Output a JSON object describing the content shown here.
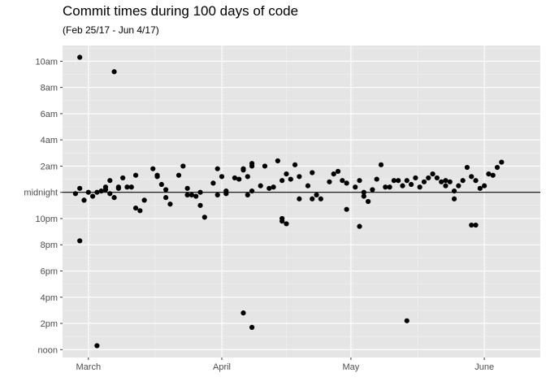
{
  "chart_data": {
    "type": "scatter",
    "title": "Commit times during 100 days of code",
    "subtitle": "(Feb 25/17 - Jun 4/17)",
    "xlabel": "",
    "ylabel": "",
    "x_axis": {
      "type": "date",
      "range": [
        "2017-02-23",
        "2017-06-14"
      ],
      "ticks": [
        {
          "label": "March",
          "value": "2017-03-01"
        },
        {
          "label": "April",
          "value": "2017-04-01"
        },
        {
          "label": "May",
          "value": "2017-05-01"
        },
        {
          "label": "June",
          "value": "2017-06-01"
        }
      ]
    },
    "y_axis": {
      "unit": "hours relative to midnight",
      "range": [
        -12.6,
        11.2
      ],
      "ticks": [
        {
          "label": "noon",
          "value": -12
        },
        {
          "label": "2pm",
          "value": -10
        },
        {
          "label": "4pm",
          "value": -8
        },
        {
          "label": "6pm",
          "value": -6
        },
        {
          "label": "8pm",
          "value": -4
        },
        {
          "label": "10pm",
          "value": -2
        },
        {
          "label": "midnight",
          "value": 0
        },
        {
          "label": "2am",
          "value": 2
        },
        {
          "label": "4am",
          "value": 4
        },
        {
          "label": "6am",
          "value": 6
        },
        {
          "label": "8am",
          "value": 8
        },
        {
          "label": "10am",
          "value": 10
        }
      ]
    },
    "reference_line": {
      "y": 0,
      "label": "midnight"
    },
    "grid": true,
    "series": [
      {
        "points": [
          {
            "x": "2017-02-26",
            "y": -0.1
          },
          {
            "x": "2017-02-27",
            "y": 10.3
          },
          {
            "x": "2017-02-27",
            "y": -3.7
          },
          {
            "x": "2017-02-27",
            "y": 0.3
          },
          {
            "x": "2017-02-28",
            "y": -0.6
          },
          {
            "x": "2017-03-01",
            "y": 0.0
          },
          {
            "x": "2017-03-02",
            "y": -0.3
          },
          {
            "x": "2017-03-03",
            "y": 0.0
          },
          {
            "x": "2017-03-03",
            "y": -11.7
          },
          {
            "x": "2017-03-04",
            "y": 0.1
          },
          {
            "x": "2017-03-05",
            "y": 0.4
          },
          {
            "x": "2017-03-05",
            "y": 0.2
          },
          {
            "x": "2017-03-06",
            "y": 0.9
          },
          {
            "x": "2017-03-06",
            "y": -0.1
          },
          {
            "x": "2017-03-07",
            "y": 9.2
          },
          {
            "x": "2017-03-07",
            "y": -0.4
          },
          {
            "x": "2017-03-08",
            "y": 0.4
          },
          {
            "x": "2017-03-08",
            "y": 0.3
          },
          {
            "x": "2017-03-09",
            "y": 1.1
          },
          {
            "x": "2017-03-10",
            "y": 0.4
          },
          {
            "x": "2017-03-11",
            "y": 0.4
          },
          {
            "x": "2017-03-12",
            "y": 1.3
          },
          {
            "x": "2017-03-12",
            "y": -1.2
          },
          {
            "x": "2017-03-13",
            "y": -1.4
          },
          {
            "x": "2017-03-14",
            "y": -0.6
          },
          {
            "x": "2017-03-16",
            "y": 1.8
          },
          {
            "x": "2017-03-17",
            "y": 1.3
          },
          {
            "x": "2017-03-17",
            "y": 1.2
          },
          {
            "x": "2017-03-18",
            "y": 0.6
          },
          {
            "x": "2017-03-19",
            "y": 0.2
          },
          {
            "x": "2017-03-19",
            "y": -0.4
          },
          {
            "x": "2017-03-20",
            "y": -0.9
          },
          {
            "x": "2017-03-22",
            "y": 1.3
          },
          {
            "x": "2017-03-23",
            "y": 2.0
          },
          {
            "x": "2017-03-24",
            "y": 0.3
          },
          {
            "x": "2017-03-24",
            "y": -0.2
          },
          {
            "x": "2017-03-25",
            "y": -0.2
          },
          {
            "x": "2017-03-26",
            "y": -0.3
          },
          {
            "x": "2017-03-27",
            "y": 0.0
          },
          {
            "x": "2017-03-27",
            "y": -1.0
          },
          {
            "x": "2017-03-28",
            "y": -1.9
          },
          {
            "x": "2017-03-30",
            "y": 0.7
          },
          {
            "x": "2017-03-31",
            "y": 1.8
          },
          {
            "x": "2017-03-31",
            "y": -0.2
          },
          {
            "x": "2017-04-01",
            "y": 1.2
          },
          {
            "x": "2017-04-02",
            "y": 0.1
          },
          {
            "x": "2017-04-02",
            "y": -0.1
          },
          {
            "x": "2017-04-04",
            "y": 1.1
          },
          {
            "x": "2017-04-05",
            "y": 1.0
          },
          {
            "x": "2017-04-06",
            "y": 1.8
          },
          {
            "x": "2017-04-06",
            "y": 1.7
          },
          {
            "x": "2017-04-06",
            "y": -9.2
          },
          {
            "x": "2017-04-07",
            "y": 1.2
          },
          {
            "x": "2017-04-07",
            "y": -0.2
          },
          {
            "x": "2017-04-08",
            "y": 2.2
          },
          {
            "x": "2017-04-08",
            "y": 2.0
          },
          {
            "x": "2017-04-08",
            "y": 0.1
          },
          {
            "x": "2017-04-08",
            "y": -10.3
          },
          {
            "x": "2017-04-10",
            "y": 0.5
          },
          {
            "x": "2017-04-11",
            "y": 2.0
          },
          {
            "x": "2017-04-12",
            "y": 0.3
          },
          {
            "x": "2017-04-13",
            "y": 0.4
          },
          {
            "x": "2017-04-14",
            "y": 2.4
          },
          {
            "x": "2017-04-15",
            "y": 0.9
          },
          {
            "x": "2017-04-15",
            "y": -2.0
          },
          {
            "x": "2017-04-15",
            "y": -2.2
          },
          {
            "x": "2017-04-16",
            "y": 1.4
          },
          {
            "x": "2017-04-16",
            "y": -2.4
          },
          {
            "x": "2017-04-17",
            "y": 1.0
          },
          {
            "x": "2017-04-18",
            "y": 2.1
          },
          {
            "x": "2017-04-19",
            "y": 1.2
          },
          {
            "x": "2017-04-19",
            "y": -0.5
          },
          {
            "x": "2017-04-21",
            "y": 0.5
          },
          {
            "x": "2017-04-22",
            "y": 1.5
          },
          {
            "x": "2017-04-22",
            "y": -0.5
          },
          {
            "x": "2017-04-23",
            "y": -0.2
          },
          {
            "x": "2017-04-24",
            "y": -0.5
          },
          {
            "x": "2017-04-26",
            "y": 0.8
          },
          {
            "x": "2017-04-27",
            "y": 1.4
          },
          {
            "x": "2017-04-28",
            "y": 1.6
          },
          {
            "x": "2017-04-29",
            "y": 0.9
          },
          {
            "x": "2017-04-30",
            "y": 0.7
          },
          {
            "x": "2017-04-30",
            "y": -1.3
          },
          {
            "x": "2017-05-02",
            "y": 0.4
          },
          {
            "x": "2017-05-03",
            "y": 0.9
          },
          {
            "x": "2017-05-03",
            "y": -2.6
          },
          {
            "x": "2017-05-04",
            "y": 0.0
          },
          {
            "x": "2017-05-04",
            "y": -0.3
          },
          {
            "x": "2017-05-05",
            "y": -0.7
          },
          {
            "x": "2017-05-06",
            "y": 0.2
          },
          {
            "x": "2017-05-07",
            "y": 1.0
          },
          {
            "x": "2017-05-08",
            "y": 2.1
          },
          {
            "x": "2017-05-09",
            "y": 0.4
          },
          {
            "x": "2017-05-10",
            "y": 0.4
          },
          {
            "x": "2017-05-11",
            "y": 0.9
          },
          {
            "x": "2017-05-12",
            "y": 0.9
          },
          {
            "x": "2017-05-13",
            "y": 0.5
          },
          {
            "x": "2017-05-14",
            "y": 0.9
          },
          {
            "x": "2017-05-14",
            "y": -9.8
          },
          {
            "x": "2017-05-15",
            "y": 0.6
          },
          {
            "x": "2017-05-16",
            "y": 1.1
          },
          {
            "x": "2017-05-17",
            "y": 0.4
          },
          {
            "x": "2017-05-18",
            "y": 0.8
          },
          {
            "x": "2017-05-19",
            "y": 1.1
          },
          {
            "x": "2017-05-20",
            "y": 1.4
          },
          {
            "x": "2017-05-21",
            "y": 1.1
          },
          {
            "x": "2017-05-22",
            "y": 0.8
          },
          {
            "x": "2017-05-23",
            "y": 0.5
          },
          {
            "x": "2017-05-23",
            "y": 0.9
          },
          {
            "x": "2017-05-24",
            "y": 0.8
          },
          {
            "x": "2017-05-25",
            "y": 0.1
          },
          {
            "x": "2017-05-25",
            "y": -0.5
          },
          {
            "x": "2017-05-26",
            "y": 0.5
          },
          {
            "x": "2017-05-27",
            "y": 0.9
          },
          {
            "x": "2017-05-28",
            "y": 1.9
          },
          {
            "x": "2017-05-29",
            "y": 1.2
          },
          {
            "x": "2017-05-29",
            "y": -2.5
          },
          {
            "x": "2017-05-30",
            "y": 0.9
          },
          {
            "x": "2017-05-30",
            "y": -2.5
          },
          {
            "x": "2017-05-31",
            "y": 0.3
          },
          {
            "x": "2017-06-01",
            "y": 0.5
          },
          {
            "x": "2017-06-02",
            "y": 1.4
          },
          {
            "x": "2017-06-03",
            "y": 1.3
          },
          {
            "x": "2017-06-04",
            "y": 1.9
          },
          {
            "x": "2017-06-05",
            "y": 2.3
          }
        ]
      }
    ]
  }
}
